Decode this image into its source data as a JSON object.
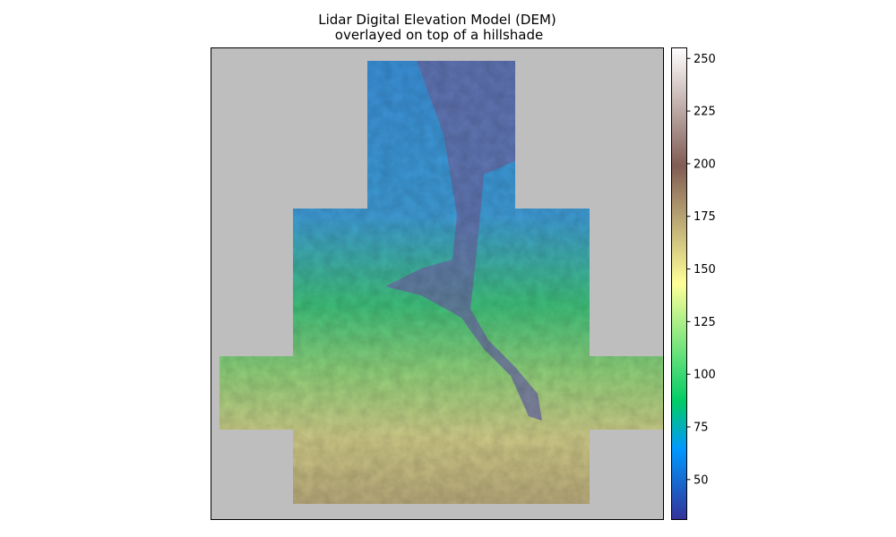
{
  "chart_data": {
    "type": "image",
    "title": "Lidar Digital Elevation Model (DEM)",
    "subtitle": "overlayed on top of a hillshade",
    "colormap": "terrain",
    "clim": [
      31,
      255
    ],
    "cticks": [
      50,
      75,
      100,
      125,
      150,
      175,
      200,
      225,
      250
    ]
  }
}
